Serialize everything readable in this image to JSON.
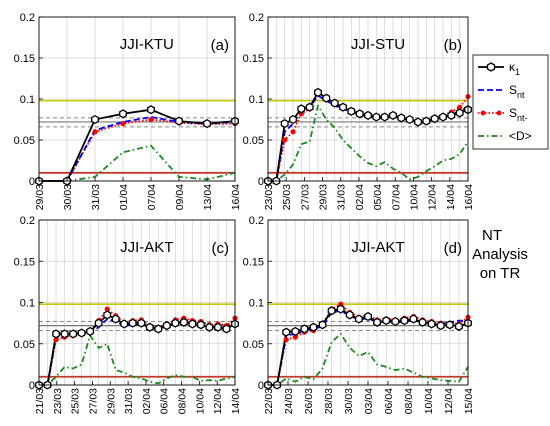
{
  "figure": {
    "side_text": [
      "NT",
      "Analysis",
      "on TR"
    ]
  },
  "colors": {
    "kappa": "#000000",
    "snt": "#0000ff",
    "sntm": "#ff0000",
    "d": "#1a8a1a",
    "yellow_line": "#c8c800",
    "red_line": "#c0392b",
    "gray_solid": "#777777",
    "gray_dashed": "#888888",
    "grid": "#d0d0d0"
  },
  "legend": {
    "items": [
      {
        "key": "kappa",
        "label": "κ",
        "sub": "1",
        "style": "solid-hex"
      },
      {
        "key": "snt",
        "label": "S",
        "sub": "nt",
        "style": "dashed"
      },
      {
        "key": "sntm",
        "label": "S",
        "sub": "nt-",
        "style": "dotted-dots"
      },
      {
        "key": "d",
        "label": "<D>",
        "sub": "",
        "style": "dashdot"
      }
    ]
  },
  "chart_data": [
    {
      "type": "line",
      "title": "JJI-KTU",
      "panel_label": "(a)",
      "ylim": [
        0,
        0.2
      ],
      "yticks": [
        "0",
        "0.05",
        "0.1",
        "0.15",
        "0.2"
      ],
      "grid": true,
      "x_tick_labels": [
        "29/03",
        "30/03",
        "31/03",
        "01/04",
        "07/04",
        "09/04",
        "13/04",
        "16/04"
      ],
      "ref_lines": {
        "yellow": 0.098,
        "red": 0.01,
        "gray_solid": 0.072,
        "gray_dashed": [
          0.077,
          0.066
        ]
      },
      "series": [
        {
          "key": "kappa",
          "values": [
            0,
            0,
            0.075,
            0.082,
            0.087,
            0.073,
            0.07,
            0.073
          ]
        },
        {
          "key": "snt",
          "values": [
            0,
            0,
            0.062,
            0.072,
            0.078,
            0.072,
            0.07,
            0.072
          ]
        },
        {
          "key": "sntm",
          "values": [
            0,
            0,
            0.06,
            0.07,
            0.075,
            0.071,
            0.069,
            0.07
          ]
        },
        {
          "key": "d",
          "values": [
            0,
            0,
            0.005,
            0.035,
            0.043,
            0.005,
            0.002,
            0.01
          ]
        }
      ]
    },
    {
      "type": "line",
      "title": "JJI-STU",
      "panel_label": "(b)",
      "ylim": [
        0,
        0.2
      ],
      "yticks": [
        "0",
        "0.05",
        "0.1",
        "0.15",
        "0.2"
      ],
      "grid": true,
      "x_tick_labels": [
        "23/03",
        "25/03",
        "27/03",
        "29/03",
        "31/03",
        "02/04",
        "05/04",
        "07/04",
        "10/04",
        "12/04",
        "14/04",
        "16/04"
      ],
      "ref_lines": {
        "yellow": 0.098,
        "red": 0.01,
        "gray_solid": 0.072,
        "gray_dashed": [
          0.077,
          0.066
        ]
      },
      "series": [
        {
          "key": "kappa",
          "values": [
            0,
            0,
            0.07,
            0.075,
            0.088,
            0.09,
            0.108,
            0.101,
            0.095,
            0.09,
            0.085,
            0.082,
            0.08,
            0.078,
            0.078,
            0.08,
            0.077,
            0.075,
            0.072,
            0.073,
            0.076,
            0.078,
            0.08,
            0.083,
            0.087
          ]
        },
        {
          "key": "snt",
          "values": [
            0,
            0,
            0.06,
            0.07,
            0.085,
            0.09,
            0.104,
            0.098,
            0.092,
            0.088,
            0.084,
            0.08,
            0.079,
            0.077,
            0.077,
            0.079,
            0.076,
            0.074,
            0.071,
            0.072,
            0.075,
            0.078,
            0.081,
            0.085,
            0.09
          ]
        },
        {
          "key": "sntm",
          "values": [
            0,
            0,
            0.05,
            0.06,
            0.082,
            0.088,
            0.11,
            0.1,
            0.094,
            0.089,
            0.085,
            0.081,
            0.082,
            0.077,
            0.078,
            0.08,
            0.076,
            0.074,
            0.07,
            0.073,
            0.077,
            0.08,
            0.084,
            0.09,
            0.103
          ]
        },
        {
          "key": "d",
          "values": [
            0,
            0,
            0.008,
            0.02,
            0.045,
            0.048,
            0.092,
            0.075,
            0.065,
            0.05,
            0.04,
            0.03,
            0.022,
            0.018,
            0.023,
            0.015,
            0.01,
            0.002,
            0.005,
            0.012,
            0.018,
            0.025,
            0.027,
            0.033,
            0.048
          ]
        }
      ]
    },
    {
      "type": "line",
      "title": "JJI-AKT",
      "panel_label": "(c)",
      "ylim": [
        0,
        0.2
      ],
      "yticks": [
        "0",
        "0.05",
        "0.1",
        "0.15",
        "0.2"
      ],
      "grid": true,
      "x_tick_labels": [
        "21/03",
        "23/03",
        "25/03",
        "27/03",
        "29/03",
        "31/03",
        "02/04",
        "06/04",
        "08/04",
        "10/04",
        "12/04",
        "14/04"
      ],
      "ref_lines": {
        "yellow": 0.098,
        "red": 0.01,
        "gray_solid": 0.072,
        "gray_dashed": [
          0.077,
          0.066
        ]
      },
      "series": [
        {
          "key": "kappa",
          "values": [
            0,
            0,
            0.062,
            0.062,
            0.062,
            0.063,
            0.065,
            0.075,
            0.085,
            0.08,
            0.074,
            0.075,
            0.075,
            0.07,
            0.068,
            0.072,
            0.075,
            0.076,
            0.074,
            0.073,
            0.07,
            0.07,
            0.068,
            0.074
          ]
        },
        {
          "key": "snt",
          "values": [
            0,
            0,
            0.058,
            0.06,
            0.061,
            0.062,
            0.064,
            0.07,
            0.08,
            0.077,
            0.072,
            0.073,
            0.074,
            0.069,
            0.068,
            0.071,
            0.074,
            0.075,
            0.074,
            0.073,
            0.071,
            0.072,
            0.071,
            0.075
          ]
        },
        {
          "key": "sntm",
          "values": [
            0,
            0,
            0.055,
            0.058,
            0.06,
            0.062,
            0.066,
            0.078,
            0.092,
            0.084,
            0.076,
            0.078,
            0.079,
            0.072,
            0.07,
            0.074,
            0.079,
            0.081,
            0.078,
            0.077,
            0.073,
            0.074,
            0.072,
            0.081
          ]
        },
        {
          "key": "d",
          "values": [
            0,
            0,
            0.01,
            0.022,
            0.02,
            0.025,
            0.06,
            0.045,
            0.05,
            0.018,
            0.015,
            0.01,
            0.008,
            0.004,
            0.002,
            0.008,
            0.012,
            0.01,
            0.01,
            0.005,
            0.006,
            0.005,
            0.008,
            0.01
          ]
        }
      ]
    },
    {
      "type": "line",
      "title": "JJI-AKT",
      "panel_label": "(d)",
      "ylim": [
        0,
        0.2
      ],
      "yticks": [
        "0",
        "0.05",
        "0.1",
        "0.15",
        "0.2"
      ],
      "grid": true,
      "x_tick_labels": [
        "22/03",
        "24/03",
        "26/03",
        "28/03",
        "30/03",
        "03/04",
        "06/04",
        "08/04",
        "10/04",
        "12/04",
        "15/04"
      ],
      "ref_lines": {
        "yellow": 0.098,
        "red": 0.01,
        "gray_solid": 0.072,
        "gray_dashed": [
          0.077,
          0.066
        ]
      },
      "series": [
        {
          "key": "kappa",
          "values": [
            0,
            0,
            0.064,
            0.065,
            0.068,
            0.07,
            0.073,
            0.09,
            0.092,
            0.085,
            0.08,
            0.083,
            0.076,
            0.078,
            0.077,
            0.078,
            0.08,
            0.076,
            0.074,
            0.072,
            0.073,
            0.071,
            0.075
          ]
        },
        {
          "key": "snt",
          "values": [
            0,
            0,
            0.06,
            0.062,
            0.066,
            0.068,
            0.071,
            0.088,
            0.09,
            0.084,
            0.079,
            0.081,
            0.076,
            0.077,
            0.076,
            0.077,
            0.078,
            0.076,
            0.075,
            0.074,
            0.076,
            0.078,
            0.078
          ]
        },
        {
          "key": "sntm",
          "values": [
            0,
            0,
            0.055,
            0.058,
            0.064,
            0.066,
            0.074,
            0.092,
            0.098,
            0.088,
            0.082,
            0.085,
            0.079,
            0.08,
            0.079,
            0.081,
            0.083,
            0.079,
            0.077,
            0.075,
            0.075,
            0.074,
            0.082
          ]
        },
        {
          "key": "d",
          "values": [
            0,
            0,
            0.008,
            0.004,
            0.01,
            0.007,
            0.02,
            0.052,
            0.062,
            0.045,
            0.035,
            0.04,
            0.025,
            0.022,
            0.018,
            0.02,
            0.015,
            0.01,
            0.008,
            0.006,
            0.005,
            0.004,
            0.022
          ]
        }
      ]
    }
  ]
}
